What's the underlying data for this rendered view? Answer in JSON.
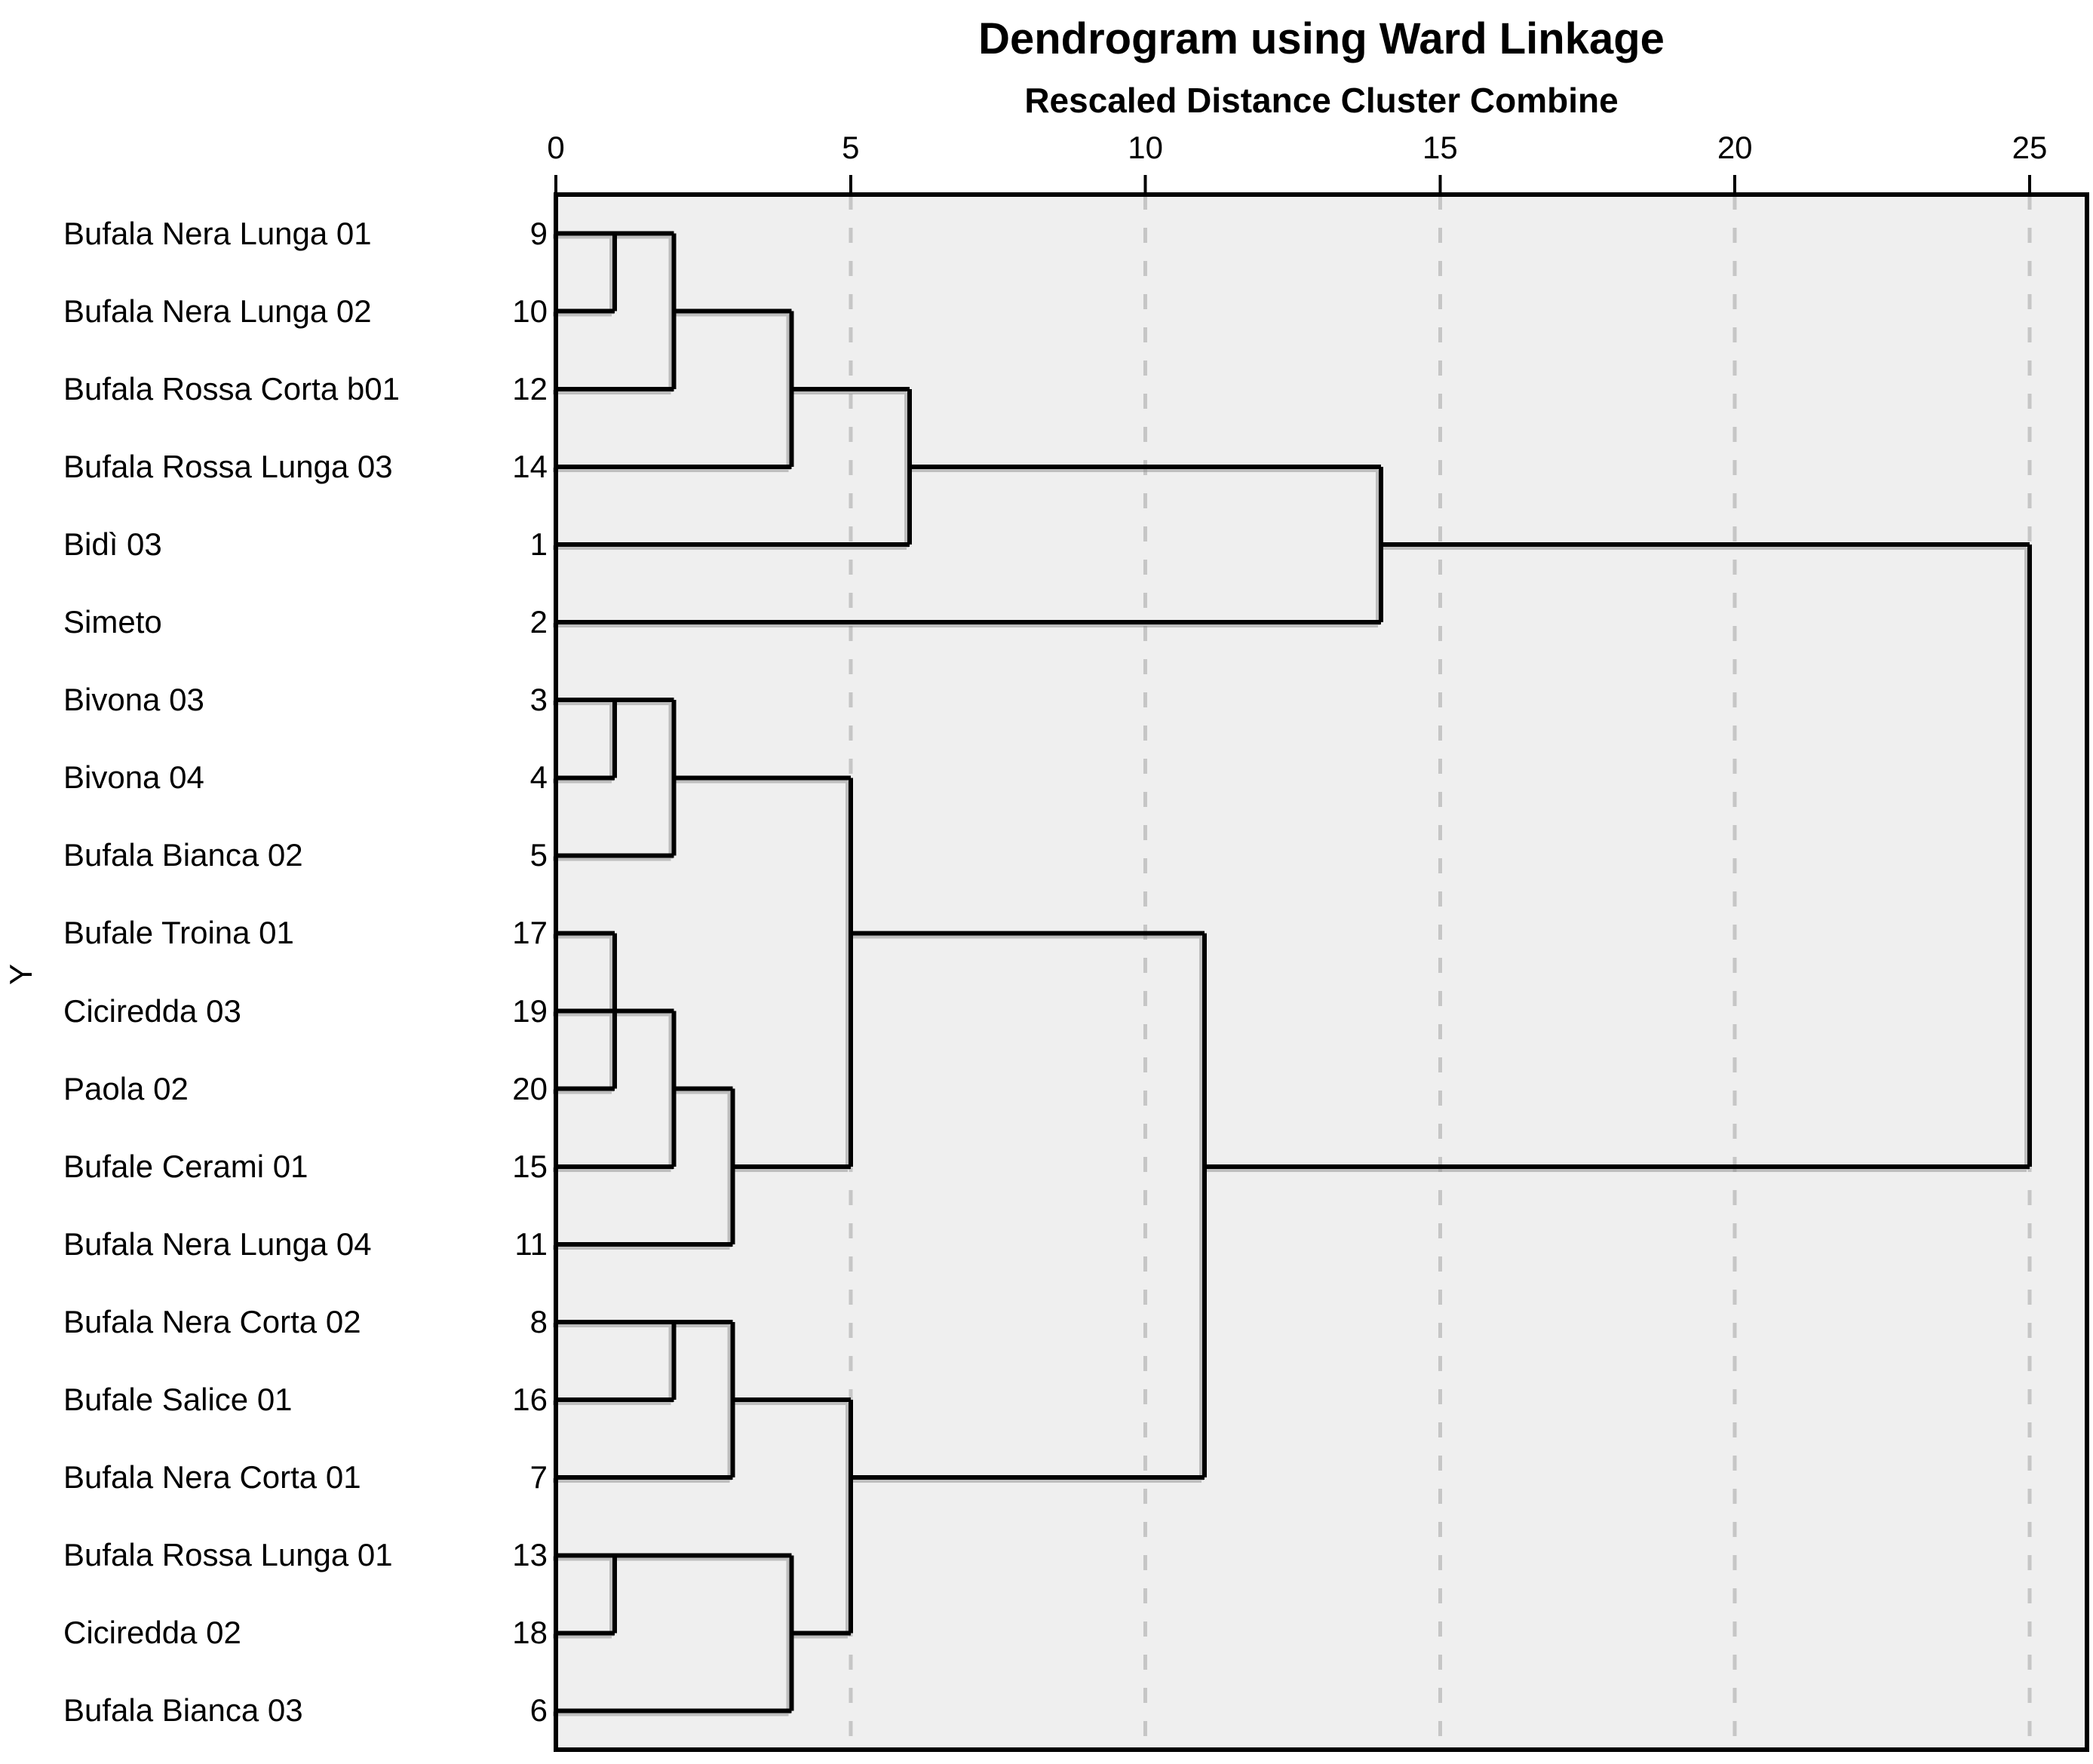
{
  "chart_data": {
    "type": "dendrogram",
    "title": "Dendrogram using Ward Linkage",
    "subtitle": "Rescaled Distance Cluster Combine",
    "orientation": "horizontal",
    "y_axis": {
      "label": "Y"
    },
    "x_axis": {
      "ticks": [
        0,
        5,
        10,
        15,
        20,
        25
      ],
      "range": [
        0,
        25
      ],
      "gridlines": [
        5,
        10,
        15,
        20,
        25
      ],
      "grid_style": "dashed"
    },
    "leaves": [
      {
        "label": "Bufala Nera Lunga 01",
        "case": 9
      },
      {
        "label": "Bufala Nera Lunga 02",
        "case": 10
      },
      {
        "label": "Bufala Rossa Corta b01",
        "case": 12
      },
      {
        "label": "Bufala Rossa Lunga 03",
        "case": 14
      },
      {
        "label": "Bidì 03",
        "case": 1
      },
      {
        "label": "Simeto",
        "case": 2
      },
      {
        "label": "Bivona 03",
        "case": 3
      },
      {
        "label": "Bivona 04",
        "case": 4
      },
      {
        "label": "Bufala Bianca 02",
        "case": 5
      },
      {
        "label": "Bufale Troina 01",
        "case": 17
      },
      {
        "label": "Ciciredda 03",
        "case": 19
      },
      {
        "label": "Paola 02",
        "case": 20
      },
      {
        "label": "Bufale Cerami 01",
        "case": 15
      },
      {
        "label": "Bufala Nera Lunga 04",
        "case": 11
      },
      {
        "label": "Bufala Nera Corta 02",
        "case": 8
      },
      {
        "label": "Bufale Salice 01",
        "case": 16
      },
      {
        "label": "Bufala Nera Corta 01",
        "case": 7
      },
      {
        "label": "Bufala Rossa Lunga 01",
        "case": 13
      },
      {
        "label": "Ciciredda 02",
        "case": 18
      },
      {
        "label": "Bufala Bianca 03",
        "case": 6
      }
    ],
    "merges": [
      {
        "a": "leaf0",
        "b": "leaf1",
        "distance": 1
      },
      {
        "a": "merge0",
        "b": "leaf2",
        "distance": 2
      },
      {
        "a": "merge1",
        "b": "leaf3",
        "distance": 4
      },
      {
        "a": "merge2",
        "b": "leaf4",
        "distance": 6
      },
      {
        "a": "merge3",
        "b": "leaf5",
        "distance": 14
      },
      {
        "a": "leaf6",
        "b": "leaf7",
        "distance": 1
      },
      {
        "a": "merge5",
        "b": "leaf8",
        "distance": 2
      },
      {
        "a": "leaf9",
        "b": "leaf10",
        "distance": 1
      },
      {
        "a": "merge7",
        "b": "leaf11",
        "distance": 1
      },
      {
        "a": "merge8",
        "b": "leaf12",
        "distance": 2
      },
      {
        "a": "merge9",
        "b": "leaf13",
        "distance": 3
      },
      {
        "a": "merge6",
        "b": "merge10",
        "distance": 5
      },
      {
        "a": "leaf14",
        "b": "leaf15",
        "distance": 2
      },
      {
        "a": "merge12",
        "b": "leaf16",
        "distance": 3
      },
      {
        "a": "leaf17",
        "b": "leaf18",
        "distance": 1
      },
      {
        "a": "merge14",
        "b": "leaf19",
        "distance": 4
      },
      {
        "a": "merge13",
        "b": "merge15",
        "distance": 5
      },
      {
        "a": "merge11",
        "b": "merge16",
        "distance": 11
      },
      {
        "a": "merge4",
        "b": "merge17",
        "distance": 25
      }
    ]
  },
  "colors": {
    "page_background": "#ffffff",
    "plot_background": "#efefef",
    "line": "#000000",
    "line_shadow": "#8c8c8c",
    "gridline": "#c6c6c6",
    "border": "#000000",
    "text": "#000000"
  }
}
